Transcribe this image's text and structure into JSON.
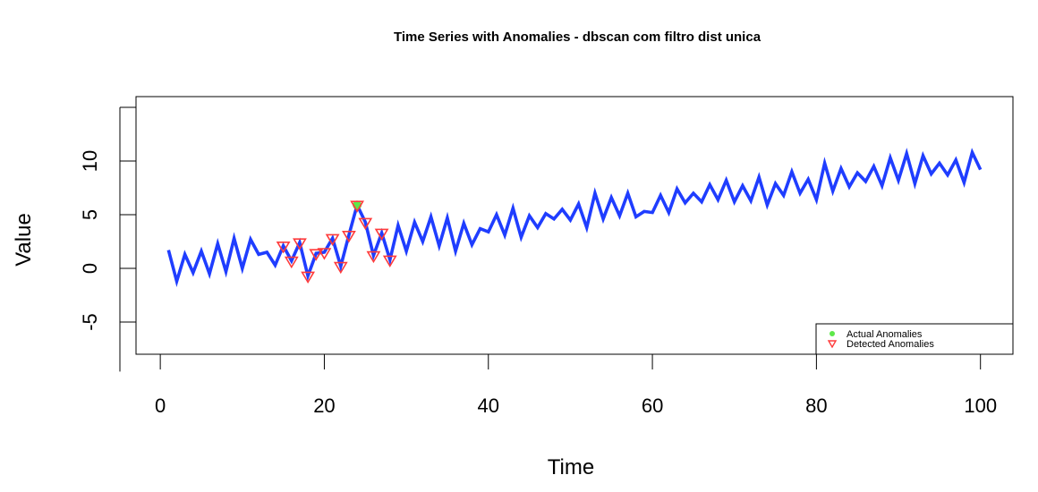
{
  "chart_data": {
    "type": "line",
    "title": "Time Series with Anomalies - dbscan com filtro dist unica",
    "xlabel": "Time",
    "ylabel": "Value",
    "xlim": [
      1,
      100
    ],
    "ylim": [
      -8,
      16
    ],
    "x_ticks": [
      0,
      20,
      40,
      60,
      80,
      100
    ],
    "y_ticks": [
      -5,
      0,
      5,
      10
    ],
    "series": [
      {
        "color": "#1f3dff",
        "x": [
          1,
          2,
          3,
          4,
          5,
          6,
          7,
          8,
          9,
          10,
          11,
          12,
          13,
          14,
          15,
          16,
          17,
          18,
          19,
          20,
          21,
          22,
          23,
          24,
          25,
          26,
          27,
          28,
          29,
          30,
          31,
          32,
          33,
          34,
          35,
          36,
          37,
          38,
          39,
          40,
          41,
          42,
          43,
          44,
          45,
          46,
          47,
          48,
          49,
          50,
          51,
          52,
          53,
          54,
          55,
          56,
          57,
          58,
          59,
          60,
          61,
          62,
          63,
          64,
          65,
          66,
          67,
          68,
          69,
          70,
          71,
          72,
          73,
          74,
          75,
          76,
          77,
          78,
          79,
          80,
          81,
          82,
          83,
          84,
          85,
          86,
          87,
          88,
          89,
          90,
          91,
          92,
          93,
          94,
          95,
          96,
          97,
          98,
          99,
          100
        ],
        "values": [
          1.7,
          -1.2,
          1.3,
          -0.4,
          1.6,
          -0.5,
          2.3,
          -0.3,
          2.8,
          0.0,
          2.7,
          1.3,
          1.5,
          0.3,
          2.1,
          0.7,
          2.4,
          -0.7,
          1.4,
          1.5,
          2.8,
          0.2,
          3.1,
          5.9,
          4.3,
          1.2,
          3.3,
          0.8,
          4.0,
          1.6,
          4.3,
          2.5,
          4.8,
          2.1,
          4.7,
          1.6,
          4.2,
          2.2,
          3.7,
          3.4,
          5.0,
          3.1,
          5.6,
          2.9,
          4.9,
          3.8,
          5.1,
          4.6,
          5.5,
          4.5,
          6.0,
          3.8,
          7.0,
          4.6,
          6.6,
          4.9,
          7.0,
          4.8,
          5.3,
          5.2,
          6.8,
          5.2,
          7.4,
          6.1,
          7.0,
          6.2,
          7.8,
          6.4,
          8.2,
          6.2,
          7.7,
          6.3,
          8.5,
          5.9,
          7.9,
          6.8,
          9.0,
          7.0,
          8.3,
          6.4,
          9.8,
          7.2,
          9.3,
          7.6,
          8.9,
          8.1,
          9.5,
          7.7,
          10.3,
          8.2,
          10.7,
          7.9,
          10.5,
          8.8,
          9.8,
          8.7,
          10.1,
          8.0,
          10.8,
          9.2
        ]
      }
    ],
    "actual_anomalies": {
      "x": [
        24
      ],
      "y": [
        5.9
      ],
      "color": "#5ee84a"
    },
    "detected_anomalies": {
      "x": [
        15,
        16,
        17,
        18,
        19,
        20,
        21,
        22,
        23,
        24,
        25,
        26,
        27,
        28
      ],
      "y": [
        2.1,
        0.7,
        2.4,
        -0.7,
        1.4,
        1.5,
        2.8,
        0.2,
        3.1,
        5.9,
        4.3,
        1.2,
        3.3,
        0.8
      ],
      "color": "#ff3b3b"
    },
    "legend": {
      "position": "bottom-right",
      "entries": [
        "Actual Anomalies",
        "Detected Anomalies"
      ]
    }
  }
}
